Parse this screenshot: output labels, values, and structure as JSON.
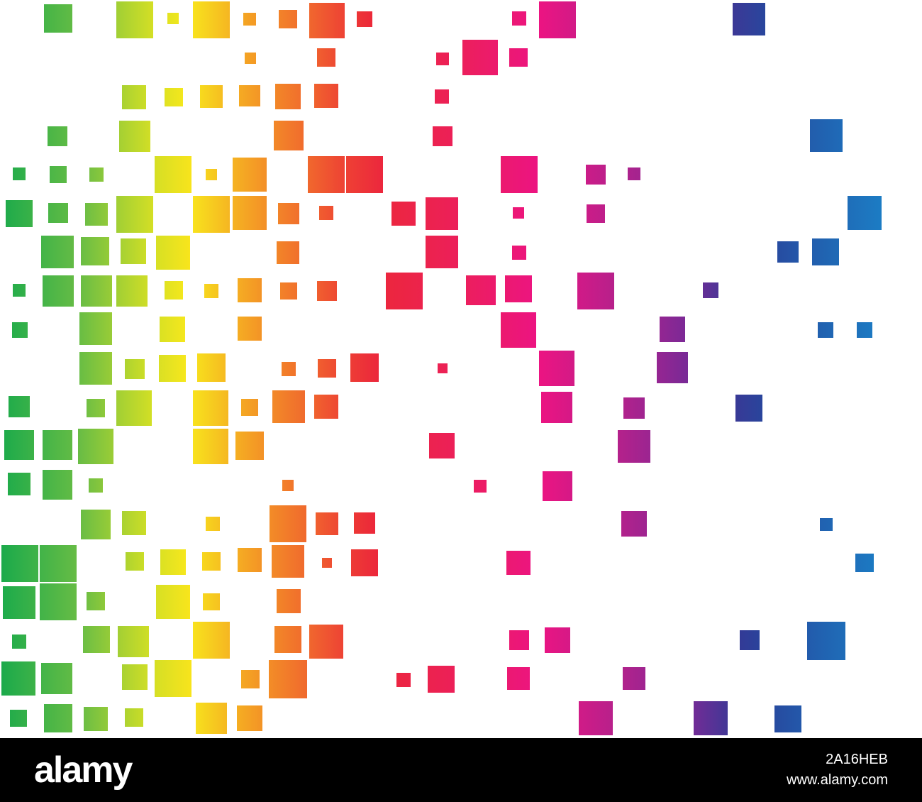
{
  "footer": {
    "logo_text": "alamy",
    "image_id": "2A16HEB",
    "site": "www.alamy.com"
  },
  "palette": {
    "green": "#1aaa4b",
    "lime": "#9ccc3a",
    "yellow": "#f7e51c",
    "orange": "#f39024",
    "red": "#ed2a3c",
    "magenta": "#ec1381",
    "purple": "#8e2a8e",
    "blue": "#2a3c96",
    "light_blue": "#1c7bc4"
  }
}
